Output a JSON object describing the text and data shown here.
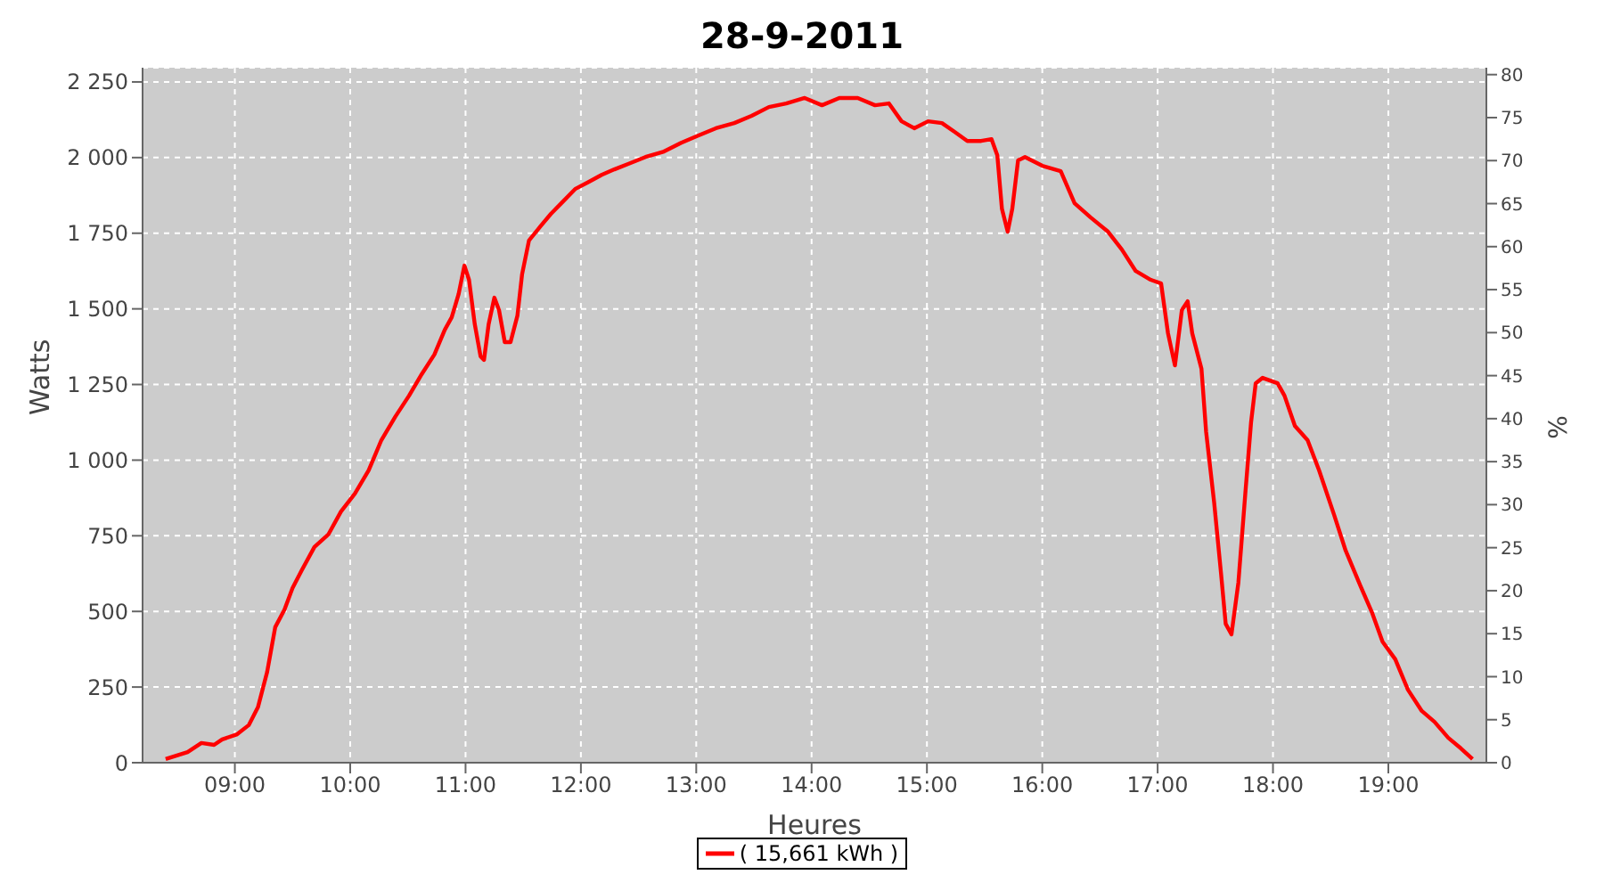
{
  "chart_data": {
    "type": "line",
    "title": "28-9-2011",
    "xlabel": "Heures",
    "ylabel": "Watts",
    "y2label": "%",
    "xlim": [
      8.2,
      19.85
    ],
    "xticks": [
      {
        "value": 9,
        "label": "09:00"
      },
      {
        "value": 10,
        "label": "10:00"
      },
      {
        "value": 11,
        "label": "11:00"
      },
      {
        "value": 12,
        "label": "12:00"
      },
      {
        "value": 13,
        "label": "13:00"
      },
      {
        "value": 14,
        "label": "14:00"
      },
      {
        "value": 15,
        "label": "15:00"
      },
      {
        "value": 16,
        "label": "16:00"
      },
      {
        "value": 17,
        "label": "17:00"
      },
      {
        "value": 18,
        "label": "18:00"
      },
      {
        "value": 19,
        "label": "19:00"
      }
    ],
    "ylim": [
      0,
      2297
    ],
    "yticks": [
      0,
      250,
      500,
      750,
      {
        "value": 1000,
        "label": "1 000"
      },
      {
        "value": 1250,
        "label": "1 250"
      },
      {
        "value": 1500,
        "label": "1 500"
      },
      {
        "value": 1750,
        "label": "1 750"
      },
      {
        "value": 2000,
        "label": "2 000"
      },
      {
        "value": 2250,
        "label": "2 250"
      }
    ],
    "y2lim": [
      0,
      80.8
    ],
    "y2ticks": [
      0,
      5,
      10,
      15,
      20,
      25,
      30,
      35,
      40,
      45,
      50,
      55,
      60,
      65,
      70,
      75,
      80
    ],
    "grid": true,
    "legend": "bottom",
    "marker": "none",
    "line_style": "solid",
    "series": [
      {
        "name": "( 15,661 kWh )",
        "color": "#ff0000",
        "x": [
          8.4,
          8.59,
          8.71,
          8.82,
          8.89,
          9.02,
          9.12,
          9.2,
          9.28,
          9.35,
          9.43,
          9.5,
          9.58,
          9.69,
          9.81,
          9.92,
          10.04,
          10.16,
          10.27,
          10.39,
          10.51,
          10.62,
          10.73,
          10.82,
          10.88,
          10.94,
          10.99,
          11.03,
          11.08,
          11.13,
          11.16,
          11.2,
          11.25,
          11.29,
          11.34,
          11.39,
          11.45,
          11.49,
          11.55,
          11.65,
          11.74,
          11.83,
          11.95,
          12.07,
          12.18,
          12.29,
          12.41,
          12.56,
          12.72,
          12.87,
          13.02,
          13.17,
          13.33,
          13.48,
          13.63,
          13.78,
          13.94,
          14.09,
          14.24,
          14.4,
          14.55,
          14.67,
          14.78,
          14.89,
          15.01,
          15.13,
          15.24,
          15.35,
          15.47,
          15.56,
          15.61,
          15.65,
          15.7,
          15.74,
          15.79,
          15.85,
          16.0,
          16.16,
          16.28,
          16.42,
          16.57,
          16.69,
          16.81,
          16.94,
          17.03,
          17.09,
          17.15,
          17.21,
          17.26,
          17.3,
          17.38,
          17.42,
          17.49,
          17.55,
          17.59,
          17.64,
          17.7,
          17.76,
          17.81,
          17.85,
          17.91,
          18.04,
          18.1,
          18.19,
          18.3,
          18.4,
          18.53,
          18.63,
          18.76,
          18.86,
          18.95,
          19.06,
          19.17,
          19.29,
          19.4,
          19.52,
          19.63,
          19.73
        ],
        "values": [
          12,
          35,
          65,
          59,
          77,
          94,
          124,
          183,
          300,
          448,
          506,
          577,
          636,
          713,
          754,
          830,
          889,
          966,
          1066,
          1143,
          1213,
          1284,
          1349,
          1431,
          1472,
          1549,
          1643,
          1596,
          1449,
          1343,
          1331,
          1449,
          1537,
          1496,
          1390,
          1390,
          1478,
          1614,
          1726,
          1773,
          1814,
          1849,
          1896,
          1920,
          1943,
          1961,
          1979,
          2002,
          2020,
          2049,
          2073,
          2097,
          2114,
          2138,
          2167,
          2179,
          2197,
          2173,
          2197,
          2197,
          2173,
          2179,
          2120,
          2097,
          2120,
          2114,
          2085,
          2055,
          2055,
          2061,
          2008,
          1831,
          1755,
          1831,
          1991,
          2002,
          1973,
          1955,
          1849,
          1802,
          1755,
          1696,
          1625,
          1596,
          1584,
          1419,
          1313,
          1496,
          1525,
          1419,
          1302,
          1095,
          860,
          624,
          459,
          424,
          595,
          889,
          1125,
          1254,
          1272,
          1254,
          1213,
          1113,
          1066,
          966,
          819,
          701,
          583,
          495,
          400,
          342,
          241,
          171,
          135,
          82,
          47,
          12
        ]
      }
    ]
  }
}
